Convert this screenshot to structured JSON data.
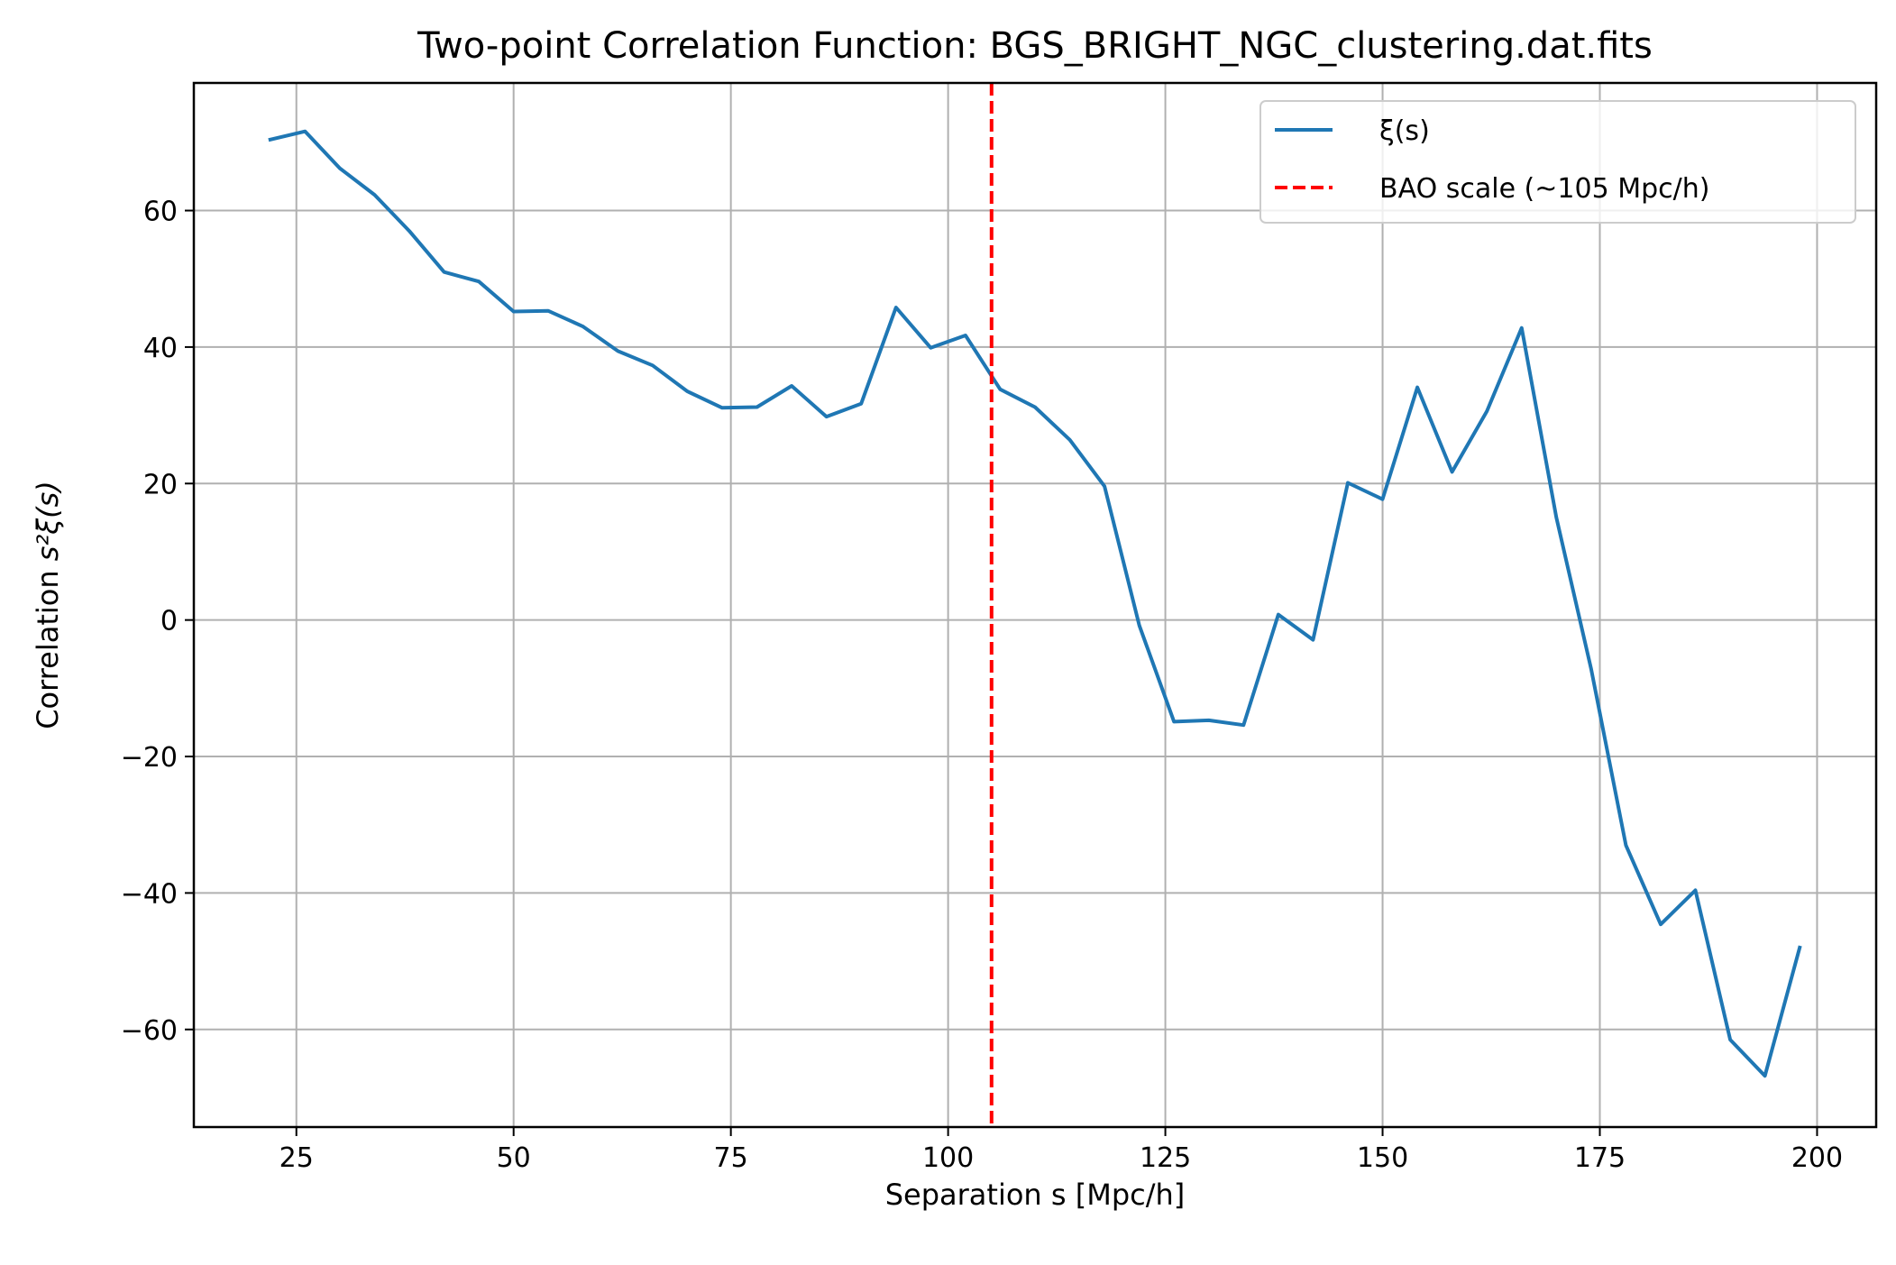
{
  "chart_data": {
    "type": "line",
    "title": "Two-point Correlation Function: BGS_BRIGHT_NGC_clustering.dat.fits",
    "xlabel": "Separation s [Mpc/h]",
    "ylabel_prefix": "Correlation ",
    "ylabel_math": "s²ξ(s)",
    "xlim": [
      13.2,
      206.8
    ],
    "ylim": [
      -74.3,
      78.7
    ],
    "xticks": [
      25,
      50,
      75,
      100,
      125,
      150,
      175,
      200
    ],
    "yticks": [
      -60,
      -40,
      -20,
      0,
      20,
      40,
      60
    ],
    "grid": true,
    "legend_position": "upper right",
    "series": [
      {
        "name": "ξ(s)",
        "color": "#1f77b4",
        "style": "solid",
        "x": [
          22,
          26,
          30,
          34,
          38,
          42,
          46,
          50,
          54,
          58,
          62,
          66,
          70,
          74,
          78,
          82,
          86,
          90,
          94,
          98,
          102,
          106,
          110,
          114,
          118,
          122,
          126,
          130,
          134,
          138,
          142,
          146,
          150,
          154,
          158,
          162,
          166,
          170,
          174,
          178,
          182,
          186,
          190,
          194,
          198
        ],
        "y": [
          70.4,
          71.6,
          66.2,
          62.3,
          57.0,
          51.0,
          49.6,
          45.2,
          45.3,
          43.0,
          39.4,
          37.3,
          33.5,
          31.1,
          31.2,
          34.3,
          29.8,
          31.7,
          45.8,
          39.9,
          41.7,
          33.8,
          31.2,
          26.4,
          19.6,
          -0.8,
          -14.9,
          -14.7,
          -15.4,
          0.8,
          -2.9,
          20.1,
          17.7,
          34.1,
          21.7,
          30.6,
          42.8,
          15.0,
          -7.2,
          -33.0,
          -44.6,
          -39.6,
          -61.5,
          -66.8,
          -48.0
        ]
      }
    ],
    "vline": {
      "name": "BAO scale (~105 Mpc/h)",
      "x": 105,
      "color": "#ff0000",
      "style": "dashed"
    }
  }
}
